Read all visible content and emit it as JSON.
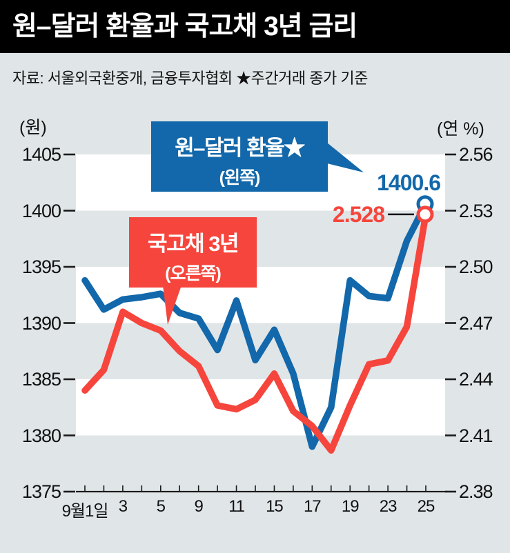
{
  "colors": {
    "page_bg": "#e0e5e8",
    "band_white": "#ffffff",
    "band_gray": "#e0e5e8",
    "blue": "#1268aa",
    "red": "#f6453c",
    "axis": "#1a1a1a"
  },
  "header": {
    "title": "원–달러 환율과 국고채 3년 금리"
  },
  "source_note": "자료: 서울외국환중개, 금융투자협회  ★주간거래 종가 기준",
  "axes": {
    "left_unit": "(원)",
    "right_unit": "(연 %)",
    "left_ticks": [
      "1405",
      "1400",
      "1395",
      "1390",
      "1385",
      "1380",
      "1375"
    ],
    "right_ticks": [
      "2.56",
      "2.53",
      "2.50",
      "2.47",
      "2.44",
      "2.41",
      "2.38"
    ],
    "x_tick_labels": [
      {
        "index": 0,
        "label": "9월1일"
      },
      {
        "index": 2,
        "label": "3"
      },
      {
        "index": 4,
        "label": "5"
      },
      {
        "index": 6,
        "label": "9"
      },
      {
        "index": 8,
        "label": "11"
      },
      {
        "index": 10,
        "label": "15"
      },
      {
        "index": 12,
        "label": "17"
      },
      {
        "index": 14,
        "label": "19"
      },
      {
        "index": 16,
        "label": "23"
      },
      {
        "index": 18,
        "label": "25"
      }
    ]
  },
  "annotations": {
    "blue_box": {
      "line1": "원–달러 환율★",
      "line2": "(왼쪽)"
    },
    "red_box": {
      "line1": "국고채 3년",
      "line2": "(오른쪽)"
    },
    "blue_value": "1400.6",
    "red_value": "2.528"
  },
  "chart_data": {
    "type": "line",
    "title": "원–달러 환율과 국고채 3년 금리",
    "x": [
      "9월1일",
      "2",
      "3",
      "4",
      "5",
      "8",
      "9",
      "10",
      "11",
      "12",
      "15",
      "16",
      "17",
      "18",
      "19",
      "22",
      "23",
      "24",
      "25"
    ],
    "series": [
      {
        "name": "원–달러 환율 (왼쪽)",
        "axis": "left",
        "color": "#1268aa",
        "values": [
          1393.8,
          1391.2,
          1392.1,
          1392.3,
          1392.6,
          1390.9,
          1390.4,
          1387.6,
          1392.0,
          1386.7,
          1389.4,
          1385.5,
          1379.0,
          1382.5,
          1393.8,
          1392.4,
          1392.2,
          1397.3,
          1400.6
        ],
        "end_label": "1400.6"
      },
      {
        "name": "국고채 3년 (오른쪽)",
        "axis": "right",
        "color": "#f6453c",
        "values": [
          2.434,
          2.445,
          2.476,
          2.47,
          2.466,
          2.455,
          2.447,
          2.426,
          2.424,
          2.429,
          2.443,
          2.423,
          2.415,
          2.402,
          2.426,
          2.448,
          2.45,
          2.468,
          2.528
        ],
        "end_label": "2.528"
      }
    ],
    "left_axis": {
      "min": 1375,
      "max": 1405,
      "ticks": [
        1405,
        1400,
        1395,
        1390,
        1385,
        1380,
        1375
      ],
      "unit": "원"
    },
    "right_axis": {
      "min": 2.38,
      "max": 2.56,
      "ticks": [
        2.56,
        2.53,
        2.5,
        2.47,
        2.44,
        2.41,
        2.38
      ],
      "unit": "연 %"
    },
    "grid": "alternating horizontal bands",
    "legend_position": "callout boxes",
    "source": "서울외국환중개, 금융투자협회",
    "note": "주간거래 종가 기준"
  }
}
